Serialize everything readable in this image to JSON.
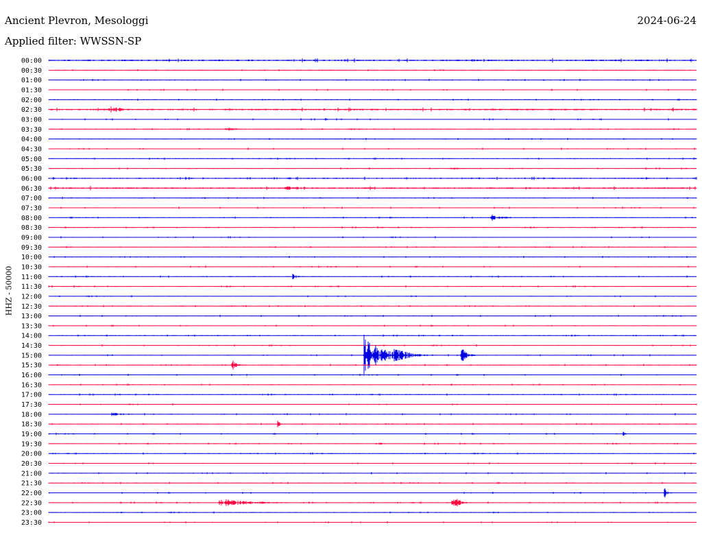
{
  "header": {
    "station": "Ancient Plevron, Mesologgi",
    "date": "2024-06-24",
    "filter": "Applied filter: WWSSN-SP"
  },
  "colors": {
    "line_a": "#0000e0",
    "line_b": "#ff0040"
  },
  "chart_data": {
    "type": "line",
    "title": "Ancient Plevron, Mesologgi",
    "ylabel": "HHZ - 50000",
    "row_labels": [
      "00:00",
      "00:30",
      "01:00",
      "01:30",
      "02:00",
      "02:30",
      "03:00",
      "03:30",
      "04:00",
      "04:30",
      "05:00",
      "05:30",
      "06:00",
      "06:30",
      "07:00",
      "07:30",
      "08:00",
      "08:30",
      "09:00",
      "09:30",
      "10:00",
      "10:30",
      "11:00",
      "11:30",
      "12:00",
      "12:30",
      "13:00",
      "13:30",
      "14:00",
      "14:30",
      "15:00",
      "15:30",
      "16:00",
      "16:30",
      "17:00",
      "17:30",
      "18:00",
      "18:30",
      "19:00",
      "19:30",
      "20:00",
      "20:30",
      "21:00",
      "21:30",
      "22:00",
      "22:30",
      "23:00",
      "23:30"
    ],
    "minutes_per_row": 30,
    "series_colors": [
      "#0000e0",
      "#ff0040"
    ],
    "noise_level": [
      2,
      1,
      1,
      1,
      1,
      2,
      1,
      1,
      1,
      1,
      1,
      1,
      1.5,
      2,
      1,
      1,
      1,
      1,
      1,
      1,
      1,
      1,
      1,
      1,
      1,
      1,
      1,
      1,
      1,
      1,
      1,
      1,
      1,
      1,
      1,
      1,
      1,
      1,
      1,
      1,
      1,
      1,
      1,
      1,
      1,
      1,
      1,
      1
    ],
    "events": [
      {
        "row": 5,
        "minute": 2.8,
        "amplitude": 8,
        "duration": 1.6
      },
      {
        "row": 6,
        "minute": 12.8,
        "amplitude": 3,
        "duration": 0.3
      },
      {
        "row": 7,
        "minute": 8.2,
        "amplitude": 3,
        "duration": 1.6
      },
      {
        "row": 11,
        "minute": 18.6,
        "amplitude": 2,
        "duration": 2.0
      },
      {
        "row": 13,
        "minute": 11.0,
        "amplitude": 3,
        "duration": 3.5
      },
      {
        "row": 16,
        "minute": 20.5,
        "amplitude": 5,
        "duration": 1.6
      },
      {
        "row": 22,
        "minute": 11.3,
        "amplitude": 5,
        "duration": 0.6
      },
      {
        "row": 31,
        "minute": 8.5,
        "amplitude": 8,
        "duration": 0.7
      },
      {
        "row": 30,
        "minute": 14.6,
        "amplitude": 32,
        "duration": 2.4
      },
      {
        "row": 30,
        "minute": 16.0,
        "amplitude": 12,
        "duration": 2.0
      },
      {
        "row": 30,
        "minute": 19.1,
        "amplitude": 15,
        "duration": 0.7
      },
      {
        "row": 36,
        "minute": 2.9,
        "amplitude": 3,
        "duration": 1.5
      },
      {
        "row": 37,
        "minute": 10.6,
        "amplitude": 5,
        "duration": 0.5
      },
      {
        "row": 38,
        "minute": 10.4,
        "amplitude": 3,
        "duration": 0.3
      },
      {
        "row": 38,
        "minute": 26.6,
        "amplitude": 3,
        "duration": 0.5
      },
      {
        "row": 39,
        "minute": 15.3,
        "amplitude": 2,
        "duration": 1.0
      },
      {
        "row": 44,
        "minute": 28.5,
        "amplitude": 9,
        "duration": 0.5
      },
      {
        "row": 45,
        "minute": 7.9,
        "amplitude": 6,
        "duration": 4.6
      },
      {
        "row": 45,
        "minute": 18.7,
        "amplitude": 13,
        "duration": 0.8
      }
    ]
  }
}
